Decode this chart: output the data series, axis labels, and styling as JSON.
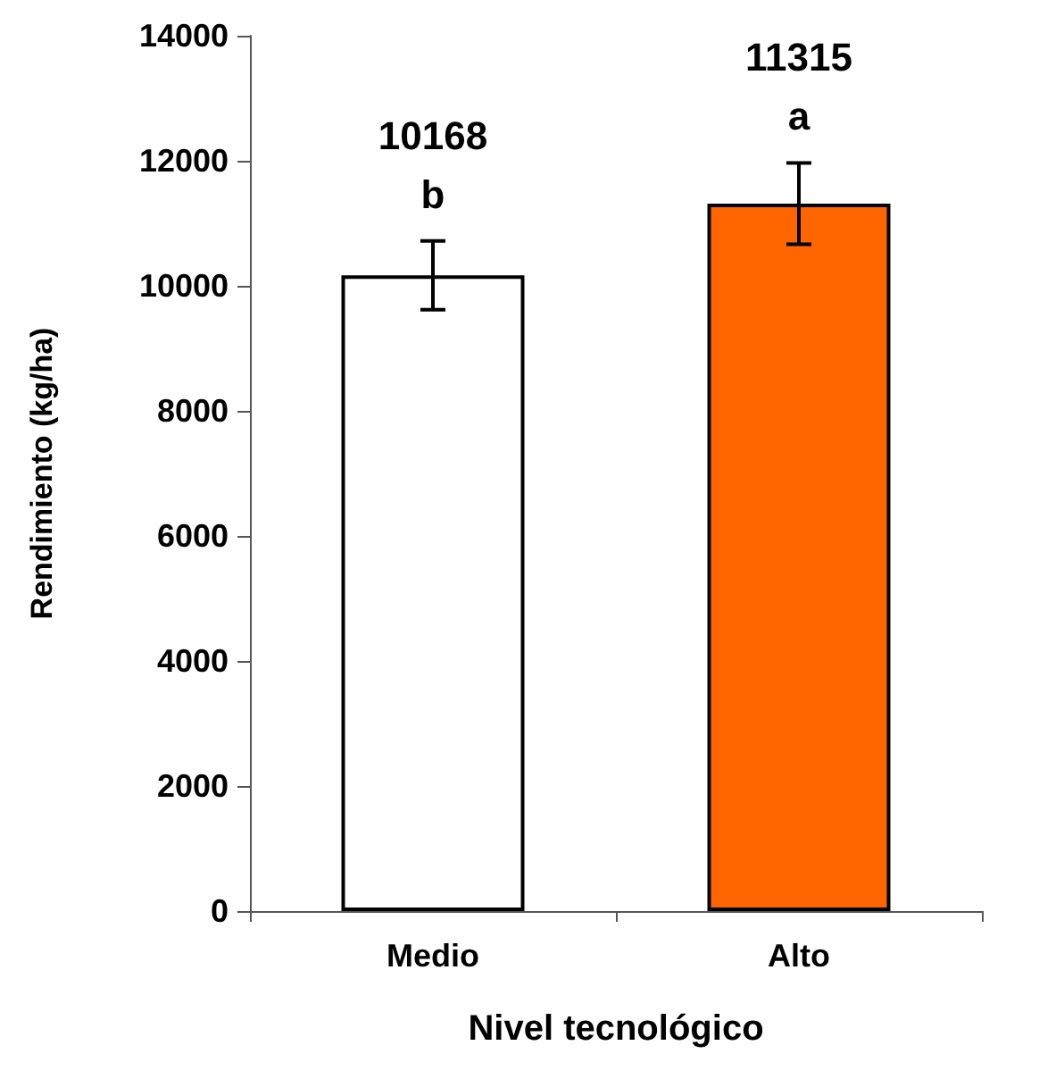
{
  "chart_data": {
    "type": "bar",
    "xlabel": "Nivel tecnológico",
    "ylabel": "Rendimiento (kg/ha)",
    "categories": [
      "Medio",
      "Alto"
    ],
    "values": [
      10168,
      11315
    ],
    "colors": [
      "#ffffff",
      "#ff6600"
    ],
    "errors": [
      550,
      650
    ],
    "data_labels": true,
    "annotations": [
      "b",
      "a"
    ],
    "ylim": [
      0,
      14000
    ],
    "yticks": [
      0,
      2000,
      4000,
      6000,
      8000,
      10000,
      12000,
      14000
    ],
    "grid": false
  }
}
